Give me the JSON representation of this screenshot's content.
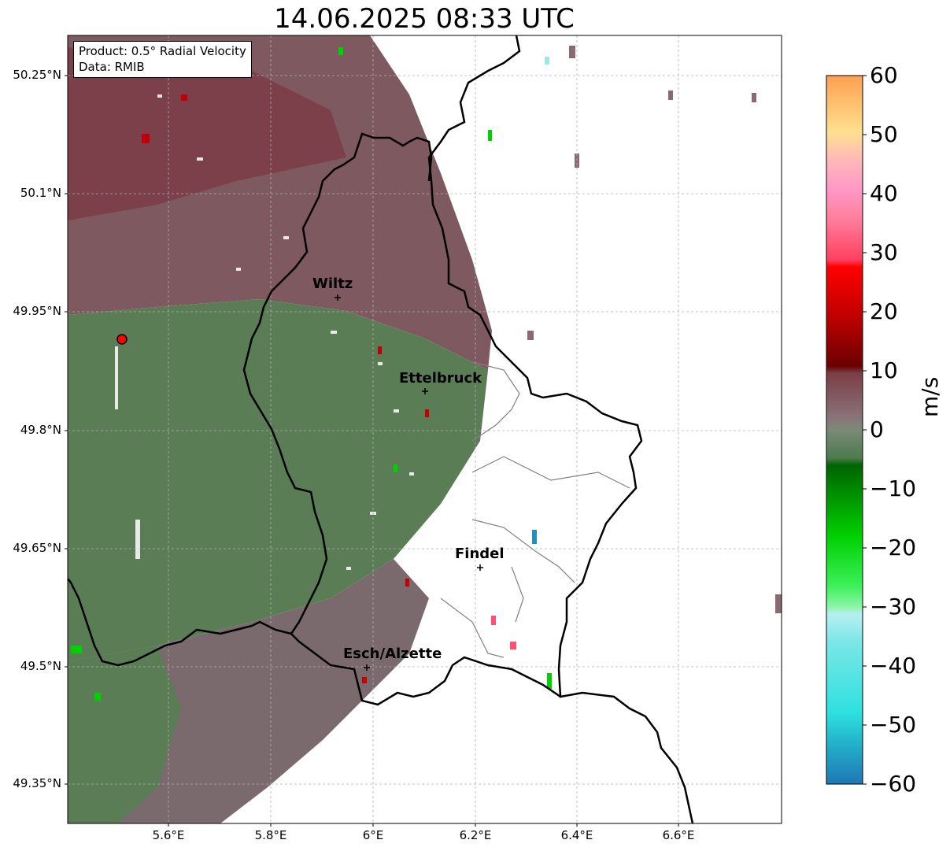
{
  "title": "14.06.2025 08:33 UTC",
  "info": {
    "product": "Product: 0.5° Radial Velocity",
    "data": "Data: RMIB"
  },
  "axes": {
    "lon_ticks": [
      "5.6°E",
      "5.8°E",
      "6°E",
      "6.2°E",
      "6.4°E",
      "6.6°E"
    ],
    "lat_ticks": [
      "50.25°N",
      "50.1°N",
      "49.95°N",
      "49.8°N",
      "49.65°N",
      "49.5°N",
      "49.35°N"
    ],
    "grid": true
  },
  "cities": [
    {
      "name": "Wiltz"
    },
    {
      "name": "Ettelbruck"
    },
    {
      "name": "Findel"
    },
    {
      "name": "Esch/Alzette"
    }
  ],
  "radar_site": {
    "color": "#ff0000"
  },
  "colorbar": {
    "unit": "m/s",
    "ticks": [
      "60",
      "50",
      "40",
      "30",
      "20",
      "10",
      "0",
      "−10",
      "−20",
      "−30",
      "−40",
      "−50",
      "−60"
    ],
    "range": [
      -60,
      60
    ]
  },
  "colors": {
    "outward_far": "#7b4a50",
    "inward": "#5a7d55",
    "border": "#000000",
    "district": "#808080",
    "gridline": "#b0b0b0"
  }
}
